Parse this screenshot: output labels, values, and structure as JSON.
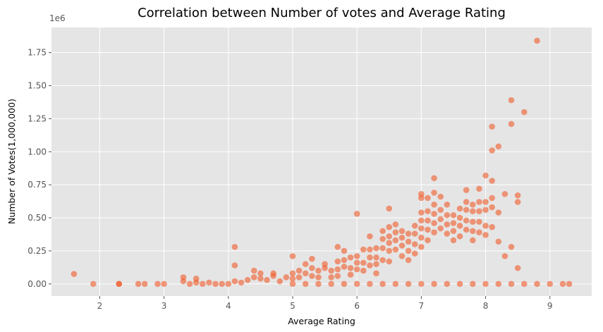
{
  "chart_data": {
    "type": "scatter",
    "title": "Correlation between Number of votes and Average Rating",
    "xlabel": "Average Rating",
    "ylabel": "Number of Votes(1,000,000)",
    "y_offset_text": "1e6",
    "xlim": [
      1.25,
      9.65
    ],
    "ylim": [
      -92000,
      1940000
    ],
    "x_ticks": [
      2,
      3,
      4,
      5,
      6,
      7,
      8,
      9
    ],
    "y_ticks": [
      0,
      250000,
      500000,
      750000,
      1000000,
      1250000,
      1500000,
      1750000
    ],
    "y_tick_labels": [
      "0.00",
      "0.25",
      "0.50",
      "0.75",
      "1.00",
      "1.25",
      "1.50",
      "1.75"
    ],
    "grid": true,
    "style": "ggplot",
    "marker_color": "#f05a28",
    "marker_alpha": 0.6,
    "series": [
      {
        "points": [
          [
            1.6,
            75000
          ],
          [
            1.9,
            0
          ],
          [
            2.3,
            0
          ],
          [
            2.3,
            0
          ],
          [
            2.6,
            0
          ],
          [
            2.7,
            0
          ],
          [
            2.9,
            0
          ],
          [
            3.0,
            0
          ],
          [
            3.3,
            20000
          ],
          [
            3.3,
            50000
          ],
          [
            3.4,
            0
          ],
          [
            3.5,
            10000
          ],
          [
            3.5,
            40000
          ],
          [
            3.6,
            0
          ],
          [
            3.7,
            10000
          ],
          [
            3.8,
            0
          ],
          [
            3.9,
            0
          ],
          [
            4.0,
            0
          ],
          [
            4.1,
            280000
          ],
          [
            4.1,
            140000
          ],
          [
            4.1,
            20000
          ],
          [
            4.2,
            10000
          ],
          [
            4.3,
            30000
          ],
          [
            4.4,
            100000
          ],
          [
            4.4,
            50000
          ],
          [
            4.5,
            80000
          ],
          [
            4.5,
            40000
          ],
          [
            4.6,
            30000
          ],
          [
            4.7,
            60000
          ],
          [
            4.7,
            80000
          ],
          [
            4.8,
            20000
          ],
          [
            4.9,
            50000
          ],
          [
            5.0,
            210000
          ],
          [
            5.0,
            80000
          ],
          [
            5.0,
            40000
          ],
          [
            5.1,
            100000
          ],
          [
            5.1,
            50000
          ],
          [
            5.2,
            150000
          ],
          [
            5.2,
            80000
          ],
          [
            5.3,
            190000
          ],
          [
            5.3,
            120000
          ],
          [
            5.3,
            60000
          ],
          [
            5.4,
            100000
          ],
          [
            5.4,
            50000
          ],
          [
            5.5,
            150000
          ],
          [
            5.5,
            120000
          ],
          [
            5.6,
            100000
          ],
          [
            5.6,
            50000
          ],
          [
            5.7,
            280000
          ],
          [
            5.7,
            170000
          ],
          [
            5.7,
            110000
          ],
          [
            5.7,
            60000
          ],
          [
            5.8,
            250000
          ],
          [
            5.8,
            180000
          ],
          [
            5.8,
            130000
          ],
          [
            5.9,
            200000
          ],
          [
            5.9,
            120000
          ],
          [
            5.9,
            70000
          ],
          [
            6.0,
            530000
          ],
          [
            6.0,
            210000
          ],
          [
            6.0,
            160000
          ],
          [
            6.0,
            110000
          ],
          [
            6.1,
            260000
          ],
          [
            6.1,
            160000
          ],
          [
            6.1,
            100000
          ],
          [
            6.2,
            360000
          ],
          [
            6.2,
            260000
          ],
          [
            6.2,
            200000
          ],
          [
            6.2,
            140000
          ],
          [
            6.3,
            270000
          ],
          [
            6.3,
            200000
          ],
          [
            6.3,
            150000
          ],
          [
            6.3,
            80000
          ],
          [
            6.4,
            400000
          ],
          [
            6.4,
            340000
          ],
          [
            6.4,
            270000
          ],
          [
            6.4,
            180000
          ],
          [
            6.5,
            570000
          ],
          [
            6.5,
            430000
          ],
          [
            6.5,
            360000
          ],
          [
            6.5,
            310000
          ],
          [
            6.5,
            250000
          ],
          [
            6.5,
            170000
          ],
          [
            6.6,
            450000
          ],
          [
            6.6,
            390000
          ],
          [
            6.6,
            330000
          ],
          [
            6.6,
            260000
          ],
          [
            6.7,
            400000
          ],
          [
            6.7,
            350000
          ],
          [
            6.7,
            290000
          ],
          [
            6.7,
            210000
          ],
          [
            6.8,
            380000
          ],
          [
            6.8,
            320000
          ],
          [
            6.8,
            250000
          ],
          [
            6.8,
            180000
          ],
          [
            6.9,
            440000
          ],
          [
            6.9,
            380000
          ],
          [
            6.9,
            300000
          ],
          [
            6.9,
            230000
          ],
          [
            7.0,
            680000
          ],
          [
            7.0,
            650000
          ],
          [
            7.0,
            540000
          ],
          [
            7.0,
            480000
          ],
          [
            7.0,
            420000
          ],
          [
            7.0,
            350000
          ],
          [
            7.0,
            280000
          ],
          [
            7.1,
            650000
          ],
          [
            7.1,
            550000
          ],
          [
            7.1,
            480000
          ],
          [
            7.1,
            410000
          ],
          [
            7.1,
            330000
          ],
          [
            7.2,
            800000
          ],
          [
            7.2,
            690000
          ],
          [
            7.2,
            600000
          ],
          [
            7.2,
            530000
          ],
          [
            7.2,
            460000
          ],
          [
            7.2,
            390000
          ],
          [
            7.3,
            660000
          ],
          [
            7.3,
            560000
          ],
          [
            7.3,
            490000
          ],
          [
            7.3,
            420000
          ],
          [
            7.4,
            600000
          ],
          [
            7.4,
            520000
          ],
          [
            7.4,
            450000
          ],
          [
            7.4,
            380000
          ],
          [
            7.5,
            520000
          ],
          [
            7.5,
            460000
          ],
          [
            7.5,
            400000
          ],
          [
            7.5,
            330000
          ],
          [
            7.6,
            570000
          ],
          [
            7.6,
            500000
          ],
          [
            7.6,
            440000
          ],
          [
            7.6,
            360000
          ],
          [
            7.7,
            710000
          ],
          [
            7.7,
            620000
          ],
          [
            7.7,
            560000
          ],
          [
            7.7,
            480000
          ],
          [
            7.7,
            410000
          ],
          [
            7.8,
            600000
          ],
          [
            7.8,
            550000
          ],
          [
            7.8,
            470000
          ],
          [
            7.8,
            400000
          ],
          [
            7.8,
            330000
          ],
          [
            7.9,
            720000
          ],
          [
            7.9,
            620000
          ],
          [
            7.9,
            550000
          ],
          [
            7.9,
            470000
          ],
          [
            7.9,
            390000
          ],
          [
            8.0,
            820000
          ],
          [
            8.0,
            620000
          ],
          [
            8.0,
            560000
          ],
          [
            8.0,
            440000
          ],
          [
            8.0,
            370000
          ],
          [
            8.1,
            1190000
          ],
          [
            8.1,
            1010000
          ],
          [
            8.1,
            780000
          ],
          [
            8.1,
            650000
          ],
          [
            8.1,
            580000
          ],
          [
            8.1,
            430000
          ],
          [
            8.2,
            1040000
          ],
          [
            8.2,
            540000
          ],
          [
            8.2,
            320000
          ],
          [
            8.3,
            680000
          ],
          [
            8.3,
            210000
          ],
          [
            8.4,
            1390000
          ],
          [
            8.4,
            1210000
          ],
          [
            8.4,
            280000
          ],
          [
            8.5,
            670000
          ],
          [
            8.5,
            620000
          ],
          [
            8.5,
            120000
          ],
          [
            8.6,
            1300000
          ],
          [
            8.8,
            1840000
          ],
          [
            5.0,
            0
          ],
          [
            5.2,
            0
          ],
          [
            5.4,
            0
          ],
          [
            5.6,
            0
          ],
          [
            5.8,
            0
          ],
          [
            6.0,
            0
          ],
          [
            6.2,
            0
          ],
          [
            6.4,
            0
          ],
          [
            6.6,
            0
          ],
          [
            6.8,
            0
          ],
          [
            7.0,
            0
          ],
          [
            7.2,
            0
          ],
          [
            7.4,
            0
          ],
          [
            7.6,
            0
          ],
          [
            7.8,
            0
          ],
          [
            8.0,
            0
          ],
          [
            8.2,
            0
          ],
          [
            8.4,
            0
          ],
          [
            8.6,
            0
          ],
          [
            8.8,
            0
          ],
          [
            9.0,
            0
          ],
          [
            9.2,
            0
          ],
          [
            9.3,
            0
          ]
        ]
      }
    ]
  }
}
